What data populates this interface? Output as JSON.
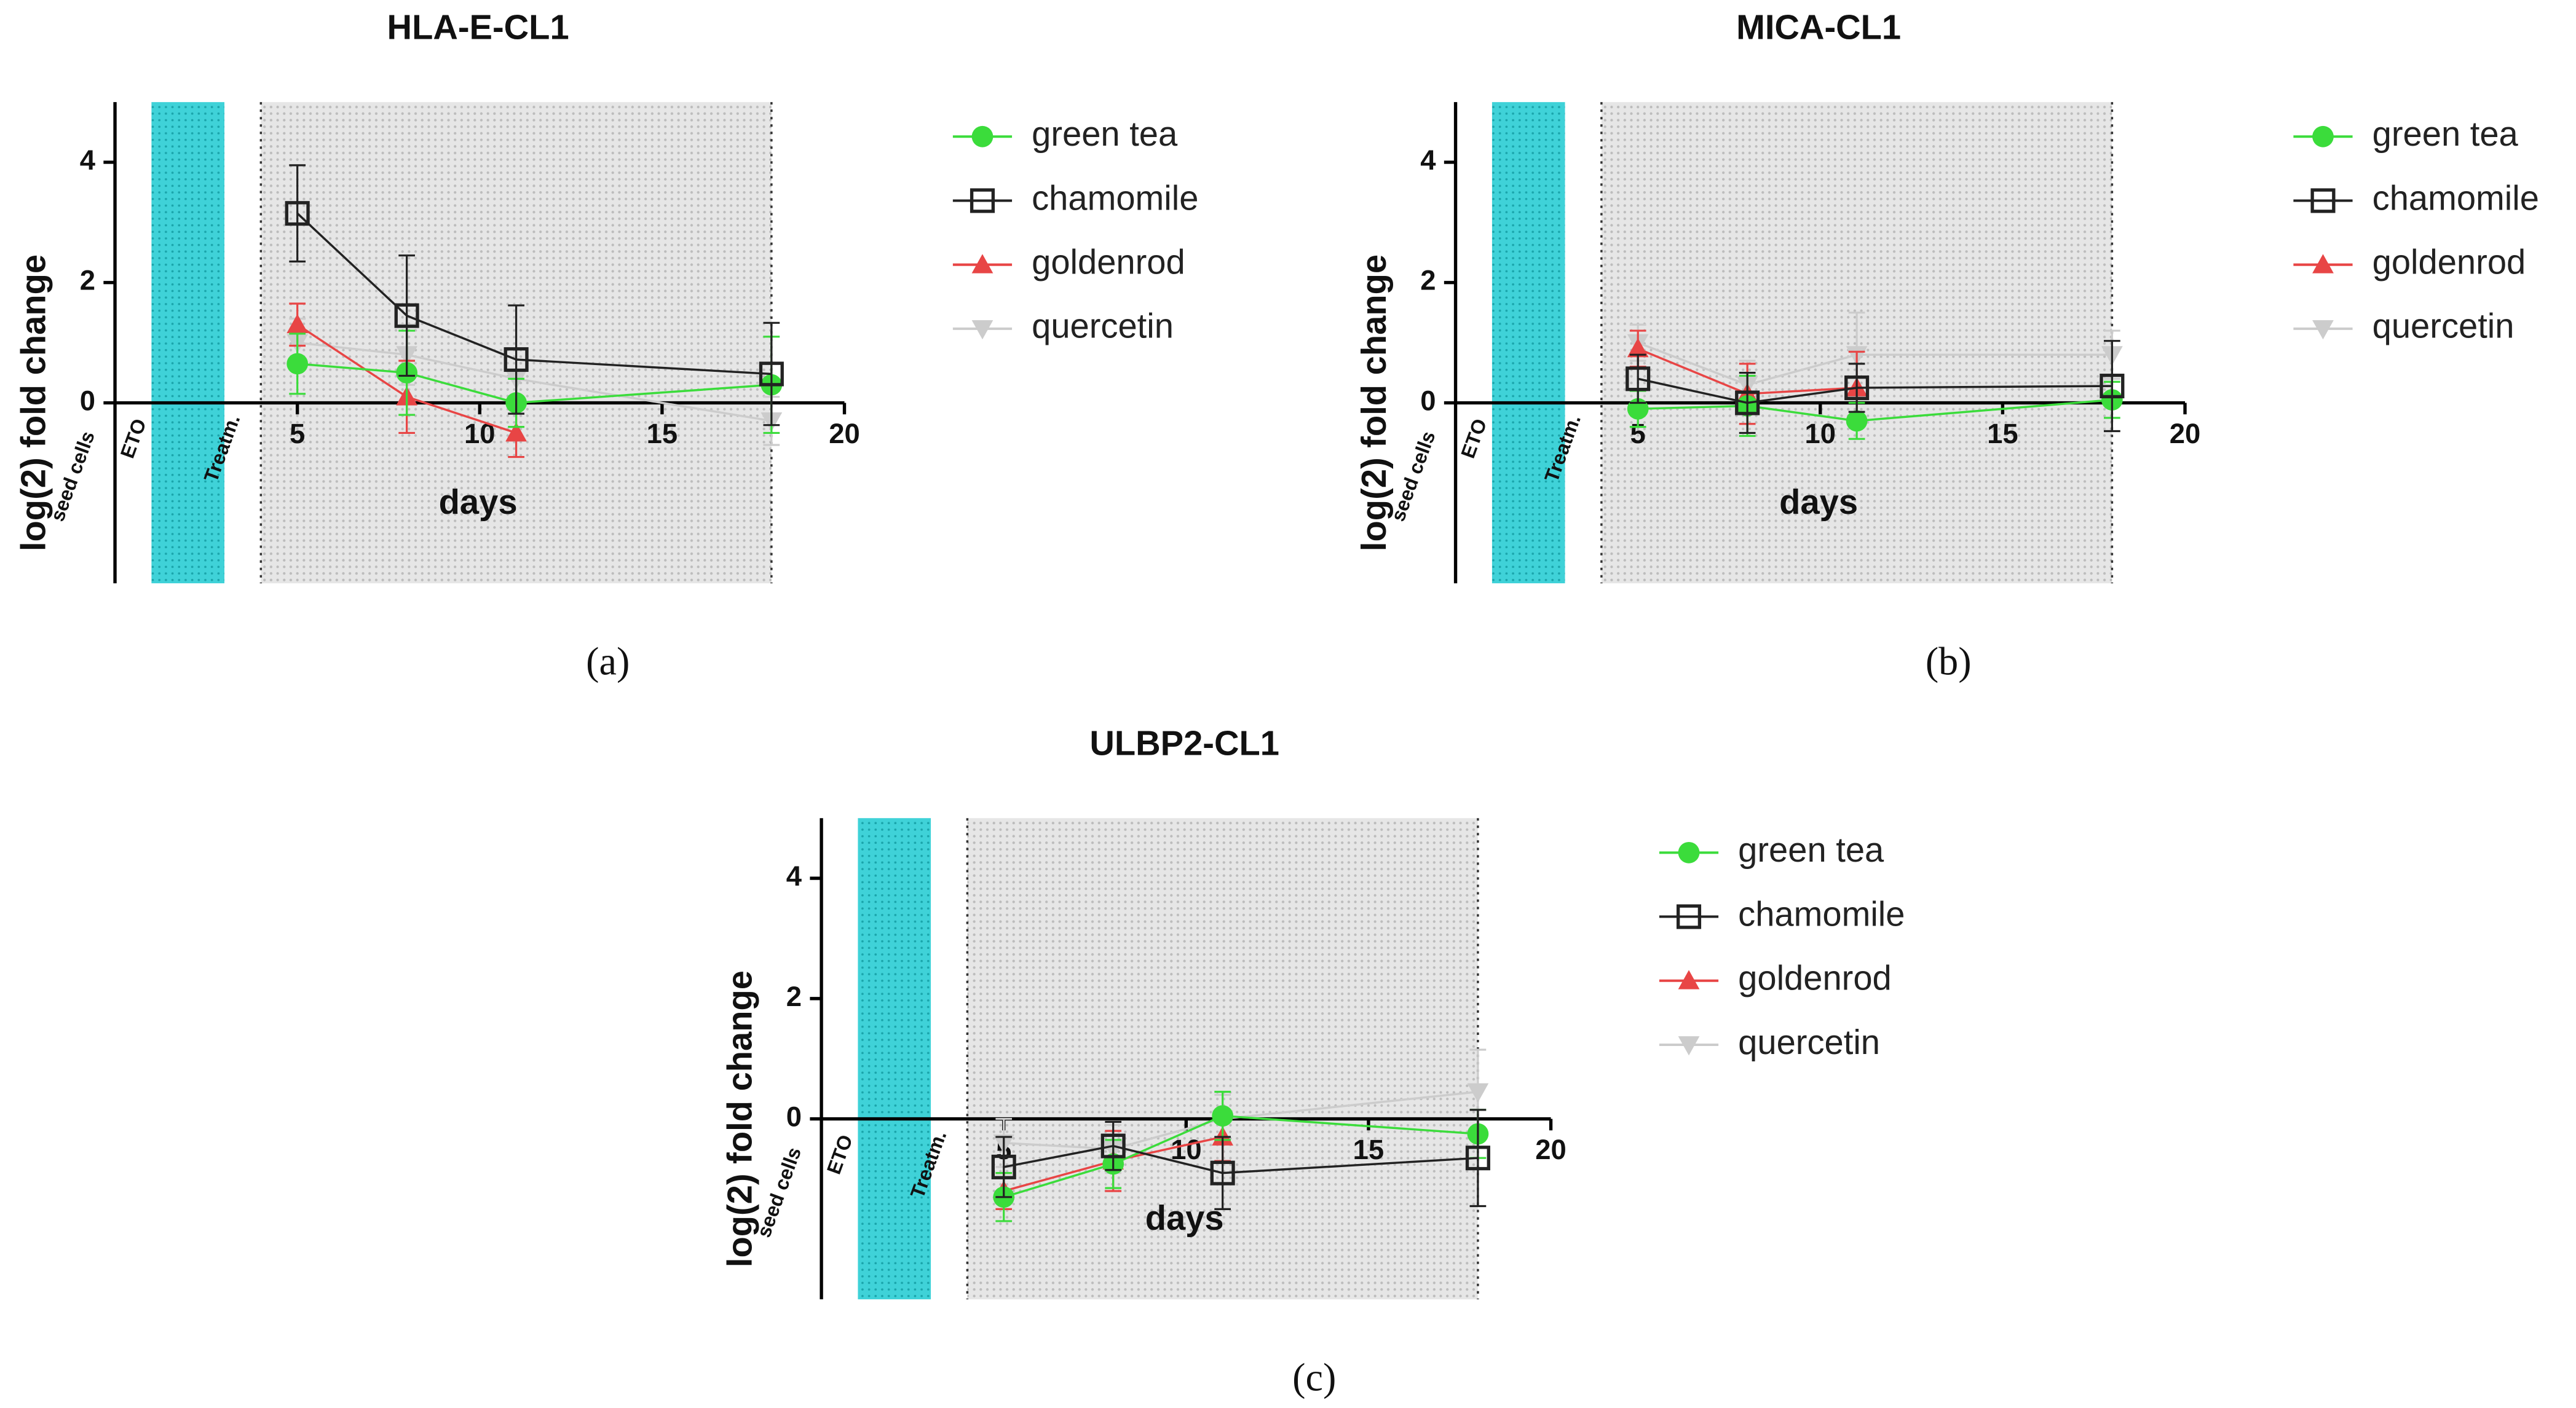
{
  "chart_data": [
    {
      "type": "line",
      "title": "HLA-E-CL1",
      "caption": "(a)",
      "x_label": "days",
      "y_label": "log(2) fold change",
      "x": [
        5,
        8,
        11,
        18
      ],
      "xlim": [
        0,
        20
      ],
      "xticks": [
        5,
        10,
        15,
        20
      ],
      "ylim": [
        -3,
        5
      ],
      "yticks": [
        0,
        2,
        4
      ],
      "annotations": [
        "seed cells",
        "ETO",
        "Treatm."
      ],
      "shaded_regions": [
        {
          "start": 1,
          "end": 3,
          "color": "#3fd2d8"
        },
        {
          "start": 4,
          "end": 18,
          "color": "#dddddd"
        }
      ],
      "series": [
        {
          "name": "green tea",
          "color": "#3bdc3b",
          "marker": "circle",
          "values": [
            0.65,
            0.5,
            0.0,
            0.3
          ],
          "errors": [
            0.5,
            0.7,
            0.4,
            0.8
          ]
        },
        {
          "name": "chamomile",
          "color": "#222222",
          "marker": "square",
          "values": [
            3.15,
            1.45,
            0.72,
            0.48
          ],
          "errors": [
            0.8,
            1.0,
            0.9,
            0.85
          ]
        },
        {
          "name": "goldenrod",
          "color": "#e84545",
          "marker": "triangle-up",
          "values": [
            1.3,
            0.1,
            -0.5,
            null
          ],
          "errors": [
            0.35,
            0.6,
            0.4,
            null
          ]
        },
        {
          "name": "quercetin",
          "color": "#cccccc",
          "marker": "triangle-down",
          "values": [
            1.0,
            0.8,
            0.4,
            -0.3
          ],
          "errors": [
            0.4,
            0.5,
            0.5,
            0.4
          ]
        }
      ]
    },
    {
      "type": "line",
      "title": "MICA-CL1",
      "caption": "(b)",
      "x_label": "days",
      "y_label": "log(2) fold change",
      "x": [
        5,
        8,
        11,
        18
      ],
      "xlim": [
        0,
        20
      ],
      "xticks": [
        5,
        10,
        15,
        20
      ],
      "ylim": [
        -3,
        5
      ],
      "yticks": [
        0,
        2,
        4
      ],
      "annotations": [
        "seed cells",
        "ETO",
        "Treatm."
      ],
      "shaded_regions": [
        {
          "start": 1,
          "end": 3,
          "color": "#3fd2d8"
        },
        {
          "start": 4,
          "end": 18,
          "color": "#dddddd"
        }
      ],
      "series": [
        {
          "name": "green tea",
          "color": "#3bdc3b",
          "marker": "circle",
          "values": [
            -0.1,
            -0.05,
            -0.3,
            0.05
          ],
          "errors": [
            0.3,
            0.5,
            0.3,
            0.3
          ]
        },
        {
          "name": "chamomile",
          "color": "#222222",
          "marker": "square",
          "values": [
            0.4,
            0.0,
            0.25,
            0.28
          ],
          "errors": [
            0.4,
            0.5,
            0.4,
            0.75
          ]
        },
        {
          "name": "goldenrod",
          "color": "#e84545",
          "marker": "triangle-up",
          "values": [
            0.9,
            0.15,
            0.25,
            null
          ],
          "errors": [
            0.3,
            0.5,
            0.6,
            null
          ]
        },
        {
          "name": "quercetin",
          "color": "#cccccc",
          "marker": "triangle-down",
          "values": [
            1.0,
            0.3,
            0.8,
            0.8
          ],
          "errors": [
            0.3,
            0.4,
            0.7,
            0.4
          ]
        }
      ]
    },
    {
      "type": "line",
      "title": "ULBP2-CL1",
      "caption": "(c)",
      "x_label": "days",
      "y_label": "log(2) fold change",
      "x": [
        5,
        8,
        11,
        18
      ],
      "xlim": [
        0,
        20
      ],
      "xticks": [
        5,
        10,
        15,
        20
      ],
      "ylim": [
        -3,
        5
      ],
      "yticks": [
        0,
        2,
        4
      ],
      "annotations": [
        "seed cells",
        "ETO",
        "Treatm."
      ],
      "shaded_regions": [
        {
          "start": 1,
          "end": 3,
          "color": "#3fd2d8"
        },
        {
          "start": 4,
          "end": 18,
          "color": "#dddddd"
        }
      ],
      "series": [
        {
          "name": "green tea",
          "color": "#3bdc3b",
          "marker": "circle",
          "values": [
            -1.3,
            -0.75,
            0.05,
            -0.25
          ],
          "errors": [
            0.4,
            0.4,
            0.4,
            0.4
          ]
        },
        {
          "name": "chamomile",
          "color": "#222222",
          "marker": "square",
          "values": [
            -0.8,
            -0.45,
            -0.9,
            -0.65
          ],
          "errors": [
            0.5,
            0.4,
            0.6,
            0.8
          ]
        },
        {
          "name": "goldenrod",
          "color": "#e84545",
          "marker": "triangle-up",
          "values": [
            -1.2,
            -0.7,
            -0.3,
            null
          ],
          "errors": [
            0.3,
            0.5,
            0.4,
            null
          ]
        },
        {
          "name": "quercetin",
          "color": "#cccccc",
          "marker": "triangle-down",
          "values": [
            -0.4,
            -0.5,
            0.0,
            0.45
          ],
          "errors": [
            0.4,
            0.4,
            0.4,
            0.7
          ]
        }
      ]
    }
  ]
}
